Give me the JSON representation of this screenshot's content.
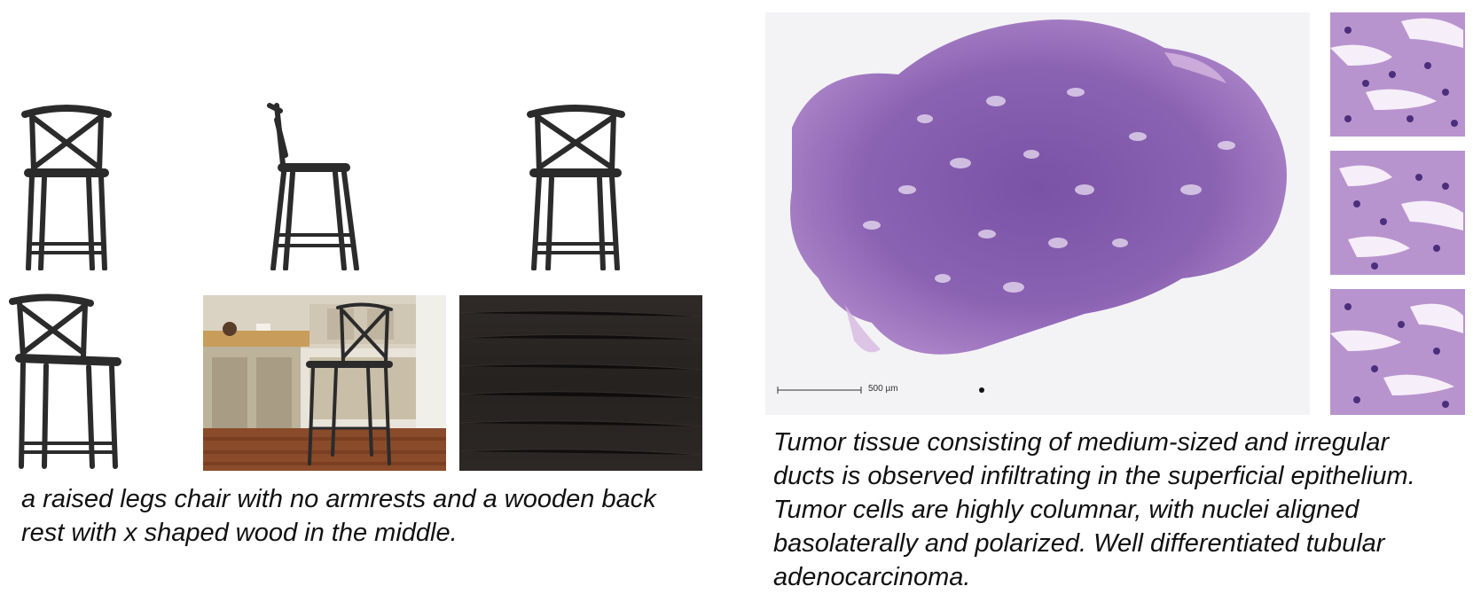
{
  "left_figure": {
    "caption": "a raised legs chair with no armrests and a wooden back\nrest with x shaped wood in the middle.",
    "panels": [
      {
        "name": "chair-front-view-image"
      },
      {
        "name": "chair-side-view-image"
      },
      {
        "name": "chair-back-view-image"
      },
      {
        "name": "chair-three-quarter-view-image"
      },
      {
        "name": "chair-kitchen-scene-image"
      },
      {
        "name": "dark-wood-texture-image"
      }
    ]
  },
  "right_figure": {
    "caption": "Tumor tissue consisting of medium-sized and irregular\nducts is observed infiltrating in the superficial epithelium.\nTumor cells are highly columnar, with nuclei aligned\nbasolaterally and polarized. Well differentiated tubular\nadenocarcinoma.",
    "scale_bar_label": "500 µm",
    "colors": {
      "tissue_primary": "#8b63b3",
      "tissue_light": "#c5a3d6",
      "background": "#f3f3f6"
    }
  }
}
